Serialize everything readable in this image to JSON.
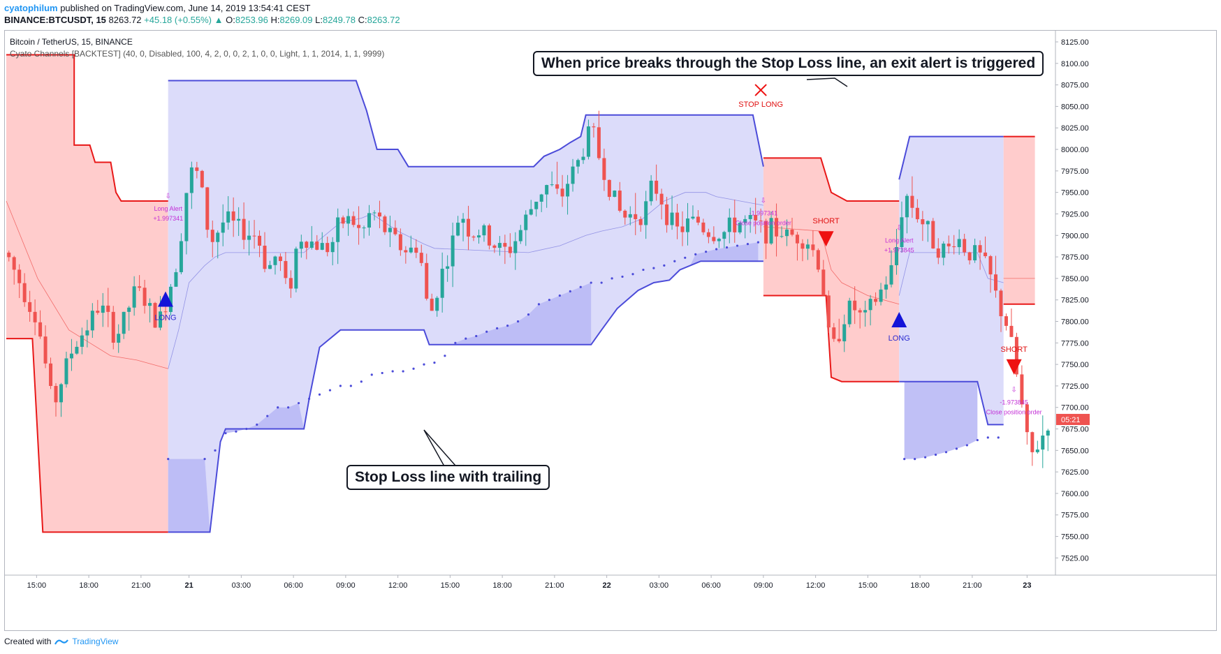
{
  "header": {
    "author": "cyatophilum",
    "published_text": "published on TradingView.com, June 14, 2019 13:54:41 CEST",
    "symbol": "BINANCE:BTCUSDT, 15",
    "price": "8263.72",
    "change": "+45.18 (+0.55%)",
    "ohlc": {
      "o_label": "O:",
      "o": "8253.96",
      "h_label": "H:",
      "h": "8269.09",
      "l_label": "L:",
      "l": "8249.78",
      "c_label": "C:",
      "c": "8263.72"
    }
  },
  "legend": {
    "title": "Bitcoin / TetherUS, 15, BINANCE",
    "indicator": "Cyato Channels [BACKTEST] (40, 0, Disabled, 100, 4, 2, 0, 0, 2, 1, 0, 0, Light, 1, 1, 2014, 1, 1, 9999)"
  },
  "callouts": {
    "top": "When price breaks through the Stop Loss line, an exit alert is triggered",
    "bottom": "Stop Loss line with trailing"
  },
  "footer": {
    "created_with": "Created with",
    "brand": "TradingView"
  },
  "colors": {
    "up": "#26a69a",
    "down": "#ef5350",
    "blue_line": "#4b4bd9",
    "red_line": "#e81818",
    "blue_fill": "#dcdcfa",
    "red_fill": "#ffcccc",
    "dark_fill": "#b9b9f5",
    "alert": "#c32fd6",
    "price_tag": "#ef5350"
  },
  "chart_data": {
    "type": "candlestick",
    "x_ticks": [
      "15:00",
      "18:00",
      "21:00",
      "21",
      "03:00",
      "06:00",
      "09:00",
      "12:00",
      "15:00",
      "18:00",
      "21:00",
      "22",
      "03:00",
      "06:00",
      "09:00",
      "12:00",
      "15:00",
      "18:00",
      "21:00",
      "23"
    ],
    "y_ticks": [
      8125.0,
      8100.0,
      8075.0,
      8050.0,
      8025.0,
      8000.0,
      7975.0,
      7950.0,
      7925.0,
      7900.0,
      7875.0,
      7850.0,
      7825.0,
      7800.0,
      7775.0,
      7750.0,
      7725.0,
      7700.0,
      7675.0,
      7650.0,
      7625.0,
      7600.0,
      7575.0,
      7550.0,
      7525.0
    ],
    "y_tick_labels": [
      "8125.00",
      "8100.00",
      "8075.00",
      "8050.00",
      "8025.00",
      "8000.00",
      "7975.00",
      "7950.00",
      "7925.00",
      "7900.00",
      "7875.00",
      "7850.00",
      "7825.00",
      "7800.00",
      "7775.00",
      "7750.00",
      "7725.00",
      "7700.00",
      "7675.00",
      "7650.00",
      "7625.00",
      "7600.00",
      "7575.00",
      "7550.00",
      "7525.00"
    ],
    "ylim": [
      7505,
      8138
    ],
    "x_range": [
      0,
      200
    ],
    "current_price_tag": "05:21",
    "current_price": 7686,
    "price_anchors": [
      [
        0,
        7880
      ],
      [
        3,
        7840
      ],
      [
        6,
        7800
      ],
      [
        9,
        7700
      ],
      [
        12,
        7760
      ],
      [
        15,
        7790
      ],
      [
        18,
        7820
      ],
      [
        21,
        7780
      ],
      [
        25,
        7840
      ],
      [
        29,
        7795
      ],
      [
        31,
        7830
      ],
      [
        33,
        7880
      ],
      [
        35,
        7975
      ],
      [
        37,
        7970
      ],
      [
        39,
        7890
      ],
      [
        42,
        7920
      ],
      [
        45,
        7905
      ],
      [
        48,
        7900
      ],
      [
        50,
        7860
      ],
      [
        52,
        7880
      ],
      [
        54,
        7830
      ],
      [
        56,
        7900
      ],
      [
        59,
        7890
      ],
      [
        62,
        7885
      ],
      [
        64,
        7915
      ],
      [
        66,
        7920
      ],
      [
        68,
        7900
      ],
      [
        70,
        7930
      ],
      [
        72,
        7910
      ],
      [
        75,
        7890
      ],
      [
        77,
        7880
      ],
      [
        79,
        7890
      ],
      [
        81,
        7800
      ],
      [
        83,
        7850
      ],
      [
        85,
        7880
      ],
      [
        87,
        7930
      ],
      [
        89,
        7900
      ],
      [
        91,
        7905
      ],
      [
        93,
        7890
      ],
      [
        96,
        7880
      ],
      [
        98,
        7900
      ],
      [
        100,
        7925
      ],
      [
        102,
        7950
      ],
      [
        104,
        7960
      ],
      [
        106,
        7940
      ],
      [
        108,
        7970
      ],
      [
        110,
        7990
      ],
      [
        112,
        8030
      ],
      [
        114,
        7980
      ],
      [
        116,
        7950
      ],
      [
        118,
        7920
      ],
      [
        120,
        7925
      ],
      [
        122,
        7925
      ],
      [
        124,
        7960
      ],
      [
        126,
        7935
      ],
      [
        128,
        7905
      ],
      [
        130,
        7910
      ],
      [
        132,
        7920
      ],
      [
        134,
        7905
      ],
      [
        136,
        7900
      ],
      [
        138,
        7905
      ],
      [
        140,
        7915
      ],
      [
        142,
        7915
      ],
      [
        144,
        7910
      ],
      [
        146,
        7905
      ],
      [
        148,
        7905
      ],
      [
        150,
        7900
      ],
      [
        152,
        7900
      ],
      [
        154,
        7890
      ],
      [
        156,
        7860
      ],
      [
        158,
        7760
      ],
      [
        160,
        7800
      ],
      [
        162,
        7820
      ],
      [
        164,
        7800
      ],
      [
        166,
        7820
      ],
      [
        168,
        7840
      ],
      [
        170,
        7865
      ],
      [
        172,
        7950
      ],
      [
        174,
        7930
      ],
      [
        176,
        7910
      ],
      [
        178,
        7890
      ],
      [
        180,
        7880
      ],
      [
        182,
        7900
      ],
      [
        184,
        7880
      ],
      [
        186,
        7880
      ],
      [
        188,
        7860
      ],
      [
        190,
        7820
      ],
      [
        192,
        7790
      ],
      [
        194,
        7720
      ],
      [
        196,
        7640
      ],
      [
        198,
        7660
      ],
      [
        200,
        7690
      ]
    ],
    "channel": {
      "segments": [
        {
          "side": "short",
          "x0": 0,
          "x1": 31,
          "upper": [
            [
              0,
              8110
            ],
            [
              13,
              8110
            ],
            [
              13,
              8005
            ],
            [
              16,
              8005
            ],
            [
              17,
              7985
            ],
            [
              20,
              7985
            ],
            [
              21,
              7950
            ],
            [
              22,
              7940
            ],
            [
              31,
              7940
            ]
          ],
          "stop": [
            [
              0,
              7780
            ],
            [
              5,
              7780
            ],
            [
              7,
              7555
            ],
            [
              31,
              7555
            ]
          ]
        },
        {
          "side": "long",
          "x0": 31,
          "x1": 145,
          "upper": [
            [
              31,
              8080
            ],
            [
              33,
              8080
            ],
            [
              67,
              8080
            ],
            [
              69,
              8045
            ],
            [
              71,
              8000
            ],
            [
              75,
              8000
            ],
            [
              77,
              7980
            ],
            [
              101,
              7980
            ],
            [
              103,
              7992
            ],
            [
              106,
              8000
            ],
            [
              108,
              8008
            ],
            [
              110,
              8015
            ],
            [
              111,
              8040
            ],
            [
              143,
              8040
            ],
            [
              145,
              7980
            ]
          ],
          "stop": [
            [
              31,
              7555
            ],
            [
              39,
              7555
            ],
            [
              41,
              7660
            ],
            [
              42,
              7675
            ],
            [
              57,
              7675
            ],
            [
              58,
              7710
            ],
            [
              60,
              7770
            ],
            [
              64,
              7790
            ],
            [
              80,
              7790
            ],
            [
              81,
              7773
            ],
            [
              112,
              7773
            ],
            [
              114,
              7790
            ],
            [
              117,
              7815
            ],
            [
              121,
              7836
            ],
            [
              124,
              7845
            ],
            [
              127,
              7848
            ],
            [
              129,
              7860
            ],
            [
              133,
              7870
            ],
            [
              145,
              7870
            ]
          ]
        },
        {
          "side": "short",
          "x0": 145,
          "x1": 171,
          "upper": [
            [
              145,
              7990
            ],
            [
              156,
              7990
            ],
            [
              158,
              7950
            ],
            [
              161,
              7940
            ],
            [
              171,
              7940
            ]
          ],
          "stop": [
            [
              145,
              7830
            ],
            [
              156,
              7830
            ],
            [
              157,
              7830
            ],
            [
              158,
              7735
            ],
            [
              160,
              7730
            ],
            [
              171,
              7730
            ]
          ]
        },
        {
          "side": "long",
          "x0": 171,
          "x1": 191,
          "upper": [
            [
              171,
              7965
            ],
            [
              173,
              8015
            ],
            [
              191,
              8015
            ]
          ],
          "stop": [
            [
              171,
              7730
            ],
            [
              186,
              7730
            ],
            [
              188,
              7680
            ],
            [
              191,
              7680
            ]
          ]
        },
        {
          "side": "short",
          "x0": 191,
          "x1": 197,
          "upper": [
            [
              191,
              8015
            ],
            [
              197,
              8015
            ]
          ],
          "stop": [
            [
              191,
              7820
            ],
            [
              197,
              7820
            ]
          ]
        }
      ],
      "trailing_dots": [
        [
          31,
          7640
        ],
        [
          38,
          7640
        ],
        [
          40,
          7650
        ],
        [
          42,
          7670
        ],
        [
          44,
          7672
        ],
        [
          46,
          7675
        ],
        [
          48,
          7680
        ],
        [
          50,
          7690
        ],
        [
          52,
          7700
        ],
        [
          54,
          7700
        ],
        [
          56,
          7705
        ],
        [
          58,
          7710
        ],
        [
          60,
          7715
        ],
        [
          62,
          7720
        ],
        [
          64,
          7725
        ],
        [
          66,
          7725
        ],
        [
          68,
          7730
        ],
        [
          70,
          7738
        ],
        [
          72,
          7740
        ],
        [
          74,
          7742
        ],
        [
          76,
          7742
        ],
        [
          78,
          7745
        ],
        [
          80,
          7750
        ],
        [
          82,
          7752
        ],
        [
          84,
          7760
        ],
        [
          86,
          7775
        ],
        [
          88,
          7780
        ],
        [
          90,
          7783
        ],
        [
          92,
          7788
        ],
        [
          94,
          7792
        ],
        [
          96,
          7795
        ],
        [
          98,
          7800
        ],
        [
          100,
          7808
        ],
        [
          102,
          7820
        ],
        [
          104,
          7825
        ],
        [
          106,
          7830
        ],
        [
          108,
          7835
        ],
        [
          110,
          7840
        ],
        [
          112,
          7845
        ],
        [
          114,
          7845
        ],
        [
          116,
          7850
        ],
        [
          118,
          7852
        ],
        [
          120,
          7855
        ],
        [
          122,
          7860
        ],
        [
          124,
          7862
        ],
        [
          126,
          7865
        ],
        [
          128,
          7870
        ],
        [
          130,
          7874
        ],
        [
          132,
          7878
        ],
        [
          134,
          7881
        ],
        [
          136,
          7884
        ],
        [
          138,
          7886
        ],
        [
          140,
          7888
        ],
        [
          142,
          7890
        ],
        [
          144,
          7892
        ],
        [
          172,
          7640
        ],
        [
          174,
          7640
        ],
        [
          176,
          7642
        ],
        [
          178,
          7645
        ],
        [
          180,
          7648
        ],
        [
          182,
          7652
        ],
        [
          184,
          7656
        ],
        [
          186,
          7662
        ],
        [
          188,
          7665
        ],
        [
          190,
          7665
        ]
      ],
      "mid_lines": [
        {
          "color": "#ef5350",
          "pts": [
            [
              0,
              7940
            ],
            [
              6,
              7850
            ],
            [
              12,
              7790
            ],
            [
              20,
              7760
            ],
            [
              25,
              7755
            ],
            [
              31,
              7745
            ]
          ]
        },
        {
          "color": "#8080e0",
          "pts": [
            [
              31,
              7745
            ],
            [
              33,
              7790
            ],
            [
              35,
              7845
            ],
            [
              38,
              7865
            ],
            [
              40,
              7875
            ],
            [
              42,
              7880
            ],
            [
              57,
              7880
            ],
            [
              60,
              7895
            ],
            [
              64,
              7915
            ],
            [
              68,
              7920
            ],
            [
              70,
              7925
            ],
            [
              75,
              7905
            ],
            [
              80,
              7890
            ],
            [
              82,
              7885
            ],
            [
              100,
              7880
            ],
            [
              106,
              7888
            ],
            [
              111,
              7900
            ],
            [
              114,
              7905
            ],
            [
              118,
              7910
            ],
            [
              122,
              7920
            ],
            [
              126,
              7940
            ],
            [
              130,
              7950
            ],
            [
              134,
              7950
            ],
            [
              136,
              7945
            ],
            [
              145,
              7935
            ]
          ]
        },
        {
          "color": "#ef5350",
          "pts": [
            [
              145,
              7910
            ],
            [
              156,
              7905
            ],
            [
              158,
              7860
            ],
            [
              160,
              7845
            ],
            [
              165,
              7830
            ],
            [
              171,
              7820
            ]
          ]
        },
        {
          "color": "#8080e0",
          "pts": [
            [
              171,
              7830
            ],
            [
              173,
              7880
            ],
            [
              186,
              7880
            ],
            [
              188,
              7850
            ],
            [
              191,
              7845
            ]
          ]
        },
        {
          "color": "#ef5350",
          "pts": [
            [
              191,
              7850
            ],
            [
              197,
              7850
            ]
          ]
        }
      ]
    },
    "signals": [
      {
        "type": "LONG",
        "x": 30.5,
        "price": 7826,
        "label": "LONG"
      },
      {
        "type": "SHORT",
        "x": 157,
        "price": 7896,
        "label": "SHORT"
      },
      {
        "type": "LONG",
        "x": 171,
        "price": 7802,
        "label": "LONG"
      },
      {
        "type": "SHORT",
        "x": 193,
        "price": 7747,
        "label": "SHORT"
      },
      {
        "type": "STOP",
        "x": 144.5,
        "price": 8069,
        "label": "STOP LONG"
      }
    ],
    "alerts": [
      {
        "x": 31,
        "price": 7935,
        "lines": [
          "Long Alert",
          "+1.997341"
        ]
      },
      {
        "x": 145,
        "price": 7930,
        "lines": [
          "-1.997341",
          "Close position order"
        ]
      },
      {
        "x": 171,
        "price": 7898,
        "lines": [
          "Long Alert",
          "+1.973845"
        ]
      },
      {
        "x": 193,
        "price": 7710,
        "lines": [
          "-1.973845",
          "Close position order"
        ]
      }
    ]
  }
}
